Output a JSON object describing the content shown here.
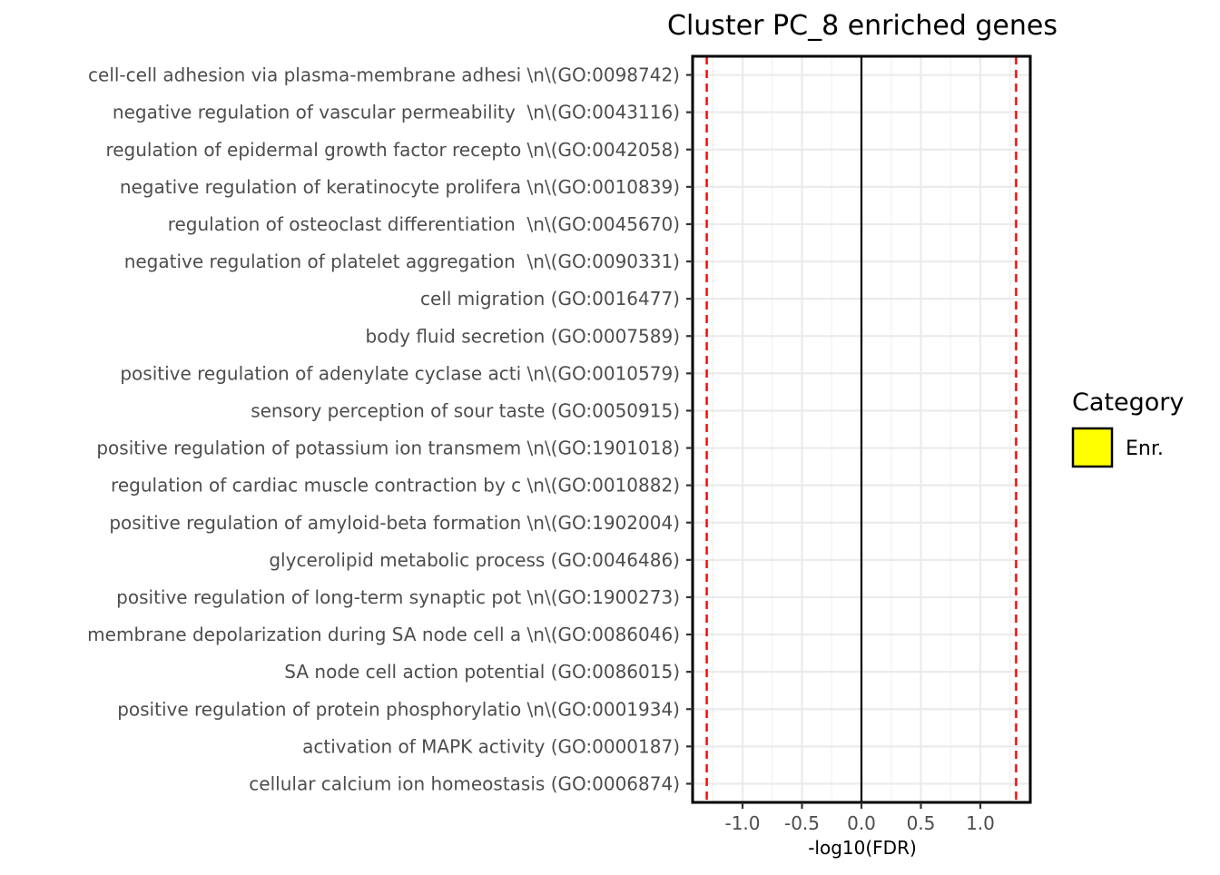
{
  "chart_data": {
    "type": "bar",
    "orientation": "horizontal",
    "title": "Cluster PC_8 enriched genes",
    "xlabel": "-log10(FDR)",
    "ylabel": "",
    "categories": [
      "cell-cell adhesion via plasma-membrane adhesi \\n\\(GO:0098742)",
      "negative regulation of vascular permeability  \\n\\(GO:0043116)",
      "regulation of epidermal growth factor recepto \\n\\(GO:0042058)",
      "negative regulation of keratinocyte prolifera \\n\\(GO:0010839)",
      "regulation of osteoclast differentiation  \\n\\(GO:0045670)",
      "negative regulation of platelet aggregation  \\n\\(GO:0090331)",
      "cell migration (GO:0016477)",
      "body fluid secretion (GO:0007589)",
      "positive regulation of adenylate cyclase acti \\n\\(GO:0010579)",
      "sensory perception of sour taste (GO:0050915)",
      "positive regulation of potassium ion transmem \\n\\(GO:1901018)",
      "regulation of cardiac muscle contraction by c \\n\\(GO:0010882)",
      "positive regulation of amyloid-beta formation \\n\\(GO:1902004)",
      "glycerolipid metabolic process (GO:0046486)",
      "positive regulation of long-term synaptic pot \\n\\(GO:1900273)",
      "membrane depolarization during SA node cell a \\n\\(GO:0086046)",
      "SA node cell action potential (GO:0086015)",
      "positive regulation of protein phosphorylatio \\n\\(GO:0001934)",
      "activation of MAPK activity (GO:0000187)",
      "cellular calcium ion homeostasis (GO:0006874)"
    ],
    "values": [
      0,
      0,
      0,
      0,
      0,
      0,
      0,
      0,
      0,
      0,
      0,
      0,
      0,
      0,
      0,
      0,
      0,
      0,
      0,
      0
    ],
    "xlim": [
      -1.42,
      1.42
    ],
    "xticks": [
      -1.0,
      -0.5,
      0.0,
      0.5,
      1.0
    ],
    "xtick_labels": [
      "-1.0",
      "-0.5",
      "0.0",
      "0.5",
      "1.0"
    ],
    "reference_lines": [
      {
        "x": -1.301,
        "style": "dashed",
        "color": "#ff0000"
      },
      {
        "x": 1.301,
        "style": "dashed",
        "color": "#ff0000"
      },
      {
        "x": 0,
        "style": "solid",
        "color": "#000000"
      }
    ],
    "grid": true,
    "legend": {
      "title": "Category",
      "position": "right",
      "items": [
        {
          "label": "Enr.",
          "color": "#ffff00"
        }
      ]
    }
  }
}
